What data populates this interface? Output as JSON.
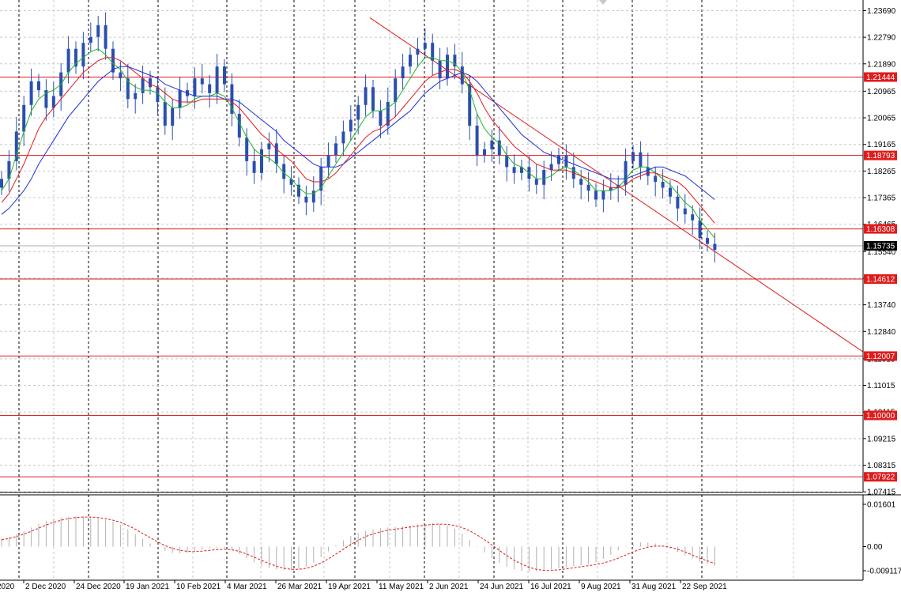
{
  "chart_data": [
    {
      "type": "candlestick",
      "title": "",
      "xlabel": "",
      "ylabel": "",
      "ylim": [
        1.0742,
        1.2405
      ],
      "price_ticks": [
        "1.23690",
        "1.22790",
        "1.21890",
        "1.20965",
        "1.20065",
        "1.19165",
        "1.18265",
        "1.17365",
        "1.16465",
        "1.15540",
        "1.14640",
        "1.13740",
        "1.12840",
        "1.11915",
        "1.11015",
        "1.10115",
        "1.09215",
        "1.08315",
        "1.07415"
      ],
      "date_labels": [
        "2020",
        "2 Dec 2020",
        "24 Dec 2020",
        "19 Jan 2021",
        "10 Feb 2021",
        "4 Mar 2021",
        "26 Mar 2021",
        "19 Apr 2021",
        "11 May 2021",
        "2 Jun 2021",
        "24 Jun 2021",
        "16 Jul 2021",
        "9 Aug 2021",
        "31 Aug 2021",
        "22 Sep 2021"
      ],
      "current_price": "1.15735",
      "horizontal_levels": [
        "1.21444",
        "1.18793",
        "1.16308",
        "1.14612",
        "1.12007",
        "1.10000",
        "1.07922"
      ],
      "trendline": {
        "from_date": "2 May 2021",
        "from_price": 1.2345,
        "to_date": "30 Oct 2021",
        "to_price": 1.1215
      },
      "series": [
        {
          "name": "",
          "type": "candles",
          "color": "#2b4fae",
          "close": [
            1.18,
            1.186,
            1.196,
            1.205,
            1.213,
            1.21,
            1.204,
            1.208,
            1.216,
            1.224,
            1.218,
            1.226,
            1.228,
            1.232,
            1.224,
            1.216,
            1.214,
            1.207,
            1.209,
            1.214,
            1.211,
            1.206,
            1.198,
            1.204,
            1.21,
            1.208,
            1.214,
            1.212,
            1.209,
            1.218,
            1.212,
            1.202,
            1.194,
            1.186,
            1.182,
            1.19,
            1.192,
            1.185,
            1.18,
            1.178,
            1.174,
            1.172,
            1.176,
            1.184,
            1.188,
            1.192,
            1.196,
            1.2,
            1.205,
            1.211,
            1.203,
            1.198,
            1.206,
            1.214,
            1.218,
            1.222,
            1.224,
            1.226,
            1.22,
            1.214,
            1.222,
            1.218,
            1.212,
            1.198,
            1.188,
            1.19,
            1.193,
            1.188,
            1.184,
            1.182,
            1.184,
            1.18,
            1.178,
            1.183,
            1.185,
            1.188,
            1.184,
            1.18,
            1.178,
            1.176,
            1.173,
            1.176,
            1.177,
            1.178,
            1.186,
            1.189,
            1.184,
            1.181,
            1.179,
            1.177,
            1.174,
            1.17,
            1.168,
            1.166,
            1.16,
            1.158,
            1.156
          ]
        },
        {
          "name": "",
          "type": "line",
          "color": "#22b522",
          "values": [
            1.176,
            1.18,
            1.188,
            1.196,
            1.203,
            1.207,
            1.209,
            1.21,
            1.212,
            1.216,
            1.219,
            1.221,
            1.223,
            1.224,
            1.222,
            1.219,
            1.217,
            1.213,
            1.211,
            1.21,
            1.21,
            1.209,
            1.206,
            1.204,
            1.204,
            1.205,
            1.207,
            1.208,
            1.208,
            1.209,
            1.208,
            1.204,
            1.199,
            1.194,
            1.19,
            1.188,
            1.187,
            1.185,
            1.182,
            1.18,
            1.177,
            1.175,
            1.175,
            1.177,
            1.181,
            1.185,
            1.189,
            1.193,
            1.197,
            1.201,
            1.203,
            1.203,
            1.204,
            1.206,
            1.21,
            1.214,
            1.218,
            1.221,
            1.221,
            1.22,
            1.22,
            1.219,
            1.216,
            1.21,
            1.202,
            1.197,
            1.194,
            1.192,
            1.188,
            1.185,
            1.184,
            1.182,
            1.18,
            1.18,
            1.181,
            1.183,
            1.184,
            1.183,
            1.181,
            1.179,
            1.176,
            1.176,
            1.176,
            1.177,
            1.18,
            1.183,
            1.184,
            1.184,
            1.182,
            1.18,
            1.178,
            1.175,
            1.172,
            1.17,
            1.166,
            1.163,
            1.16
          ]
        },
        {
          "name": "",
          "type": "line",
          "color": "#e01b1b",
          "values": [
            1.172,
            1.175,
            1.18,
            1.185,
            1.191,
            1.197,
            1.201,
            1.204,
            1.207,
            1.21,
            1.213,
            1.216,
            1.218,
            1.22,
            1.221,
            1.221,
            1.22,
            1.218,
            1.216,
            1.214,
            1.212,
            1.211,
            1.209,
            1.207,
            1.206,
            1.206,
            1.206,
            1.207,
            1.207,
            1.207,
            1.207,
            1.206,
            1.204,
            1.201,
            1.198,
            1.195,
            1.193,
            1.19,
            1.188,
            1.186,
            1.183,
            1.18,
            1.179,
            1.179,
            1.18,
            1.182,
            1.185,
            1.188,
            1.191,
            1.194,
            1.196,
            1.197,
            1.199,
            1.201,
            1.204,
            1.207,
            1.21,
            1.213,
            1.215,
            1.216,
            1.217,
            1.217,
            1.216,
            1.213,
            1.209,
            1.204,
            1.2,
            1.197,
            1.194,
            1.191,
            1.189,
            1.187,
            1.185,
            1.184,
            1.183,
            1.183,
            1.183,
            1.182,
            1.181,
            1.18,
            1.179,
            1.178,
            1.177,
            1.177,
            1.178,
            1.18,
            1.181,
            1.182,
            1.182,
            1.181,
            1.18,
            1.179,
            1.177,
            1.174,
            1.171,
            1.168,
            1.165
          ]
        },
        {
          "name": "",
          "type": "line",
          "color": "#1f2fd6",
          "values": [
            1.168,
            1.17,
            1.173,
            1.176,
            1.18,
            1.185,
            1.189,
            1.193,
            1.197,
            1.201,
            1.204,
            1.207,
            1.21,
            1.213,
            1.215,
            1.217,
            1.218,
            1.218,
            1.217,
            1.216,
            1.215,
            1.214,
            1.212,
            1.211,
            1.21,
            1.209,
            1.208,
            1.208,
            1.208,
            1.208,
            1.207,
            1.207,
            1.206,
            1.204,
            1.202,
            1.2,
            1.198,
            1.196,
            1.193,
            1.191,
            1.189,
            1.187,
            1.185,
            1.184,
            1.184,
            1.184,
            1.185,
            1.187,
            1.189,
            1.191,
            1.193,
            1.195,
            1.197,
            1.199,
            1.201,
            1.203,
            1.206,
            1.209,
            1.211,
            1.213,
            1.214,
            1.215,
            1.216,
            1.215,
            1.213,
            1.21,
            1.207,
            1.204,
            1.201,
            1.198,
            1.195,
            1.193,
            1.191,
            1.189,
            1.188,
            1.187,
            1.186,
            1.185,
            1.184,
            1.183,
            1.182,
            1.181,
            1.18,
            1.18,
            1.18,
            1.181,
            1.182,
            1.183,
            1.184,
            1.184,
            1.183,
            1.182,
            1.181,
            1.179,
            1.177,
            1.175,
            1.173
          ]
        }
      ]
    },
    {
      "type": "bar",
      "title": "",
      "ylim": [
        -0.009117,
        0.01601
      ],
      "tick_labels": [
        "0.01601",
        "0.00",
        "-0.009117"
      ],
      "series": [
        {
          "name": "",
          "type": "histogram",
          "color": "#b0b0b0",
          "values": [
            0.003,
            0.0036,
            0.0046,
            0.0058,
            0.0072,
            0.0086,
            0.0098,
            0.0106,
            0.011,
            0.0112,
            0.0114,
            0.0114,
            0.0112,
            0.0108,
            0.0102,
            0.0094,
            0.0082,
            0.0066,
            0.0048,
            0.003,
            0.0012,
            -0.0004,
            -0.0016,
            -0.0024,
            -0.0026,
            -0.0024,
            -0.0018,
            -0.001,
            -0.0006,
            -0.0004,
            -0.0006,
            -0.0014,
            -0.0028,
            -0.0044,
            -0.006,
            -0.0072,
            -0.008,
            -0.0086,
            -0.009,
            -0.009,
            -0.0086,
            -0.0076,
            -0.006,
            -0.004,
            -0.0018,
            0.0004,
            0.0024,
            0.004,
            0.0052,
            0.006,
            0.0066,
            0.007,
            0.0072,
            0.0074,
            0.0076,
            0.008,
            0.0084,
            0.0086,
            0.0088,
            0.0086,
            0.008,
            0.0068,
            0.005,
            0.0026,
            0.0002,
            -0.0022,
            -0.0044,
            -0.0062,
            -0.0076,
            -0.0086,
            -0.0092,
            -0.0094,
            -0.0094,
            -0.009,
            -0.0086,
            -0.0082,
            -0.0078,
            -0.0074,
            -0.007,
            -0.0066,
            -0.0058,
            -0.0046,
            -0.003,
            -0.0014,
            0.0002,
            0.0012,
            0.0016,
            0.0016,
            0.0012,
            0.0004,
            -0.0008,
            -0.002,
            -0.0034,
            -0.0046,
            -0.0058,
            -0.0066,
            -0.0072
          ]
        },
        {
          "name": "",
          "type": "signal-line",
          "color": "#e01b1b",
          "values": [
            0.0026,
            0.0031,
            0.0038,
            0.0047,
            0.0058,
            0.007,
            0.0082,
            0.0092,
            0.01,
            0.0106,
            0.011,
            0.0112,
            0.0112,
            0.011,
            0.0106,
            0.01,
            0.0092,
            0.008,
            0.0066,
            0.005,
            0.0034,
            0.0018,
            0.0004,
            -0.0007,
            -0.0014,
            -0.0018,
            -0.0019,
            -0.0017,
            -0.0014,
            -0.0011,
            -0.001,
            -0.0012,
            -0.0018,
            -0.0028,
            -0.004,
            -0.0052,
            -0.0064,
            -0.0074,
            -0.0082,
            -0.0086,
            -0.0086,
            -0.0082,
            -0.0074,
            -0.0062,
            -0.0046,
            -0.0028,
            -0.001,
            0.0008,
            0.0024,
            0.0038,
            0.0048,
            0.0056,
            0.0062,
            0.0066,
            0.007,
            0.0074,
            0.0078,
            0.0081,
            0.0084,
            0.0085,
            0.0084,
            0.008,
            0.0072,
            0.006,
            0.0044,
            0.0026,
            0.0006,
            -0.0014,
            -0.0034,
            -0.0052,
            -0.0066,
            -0.0078,
            -0.0086,
            -0.009,
            -0.009,
            -0.0088,
            -0.0084,
            -0.008,
            -0.0076,
            -0.0072,
            -0.0068,
            -0.0062,
            -0.0054,
            -0.0044,
            -0.0032,
            -0.002,
            -0.001,
            -0.0002,
            0.0002,
            0.0002,
            -0.0002,
            -0.001,
            -0.002,
            -0.0032,
            -0.0044,
            -0.0054,
            -0.0064
          ]
        }
      ]
    }
  ]
}
